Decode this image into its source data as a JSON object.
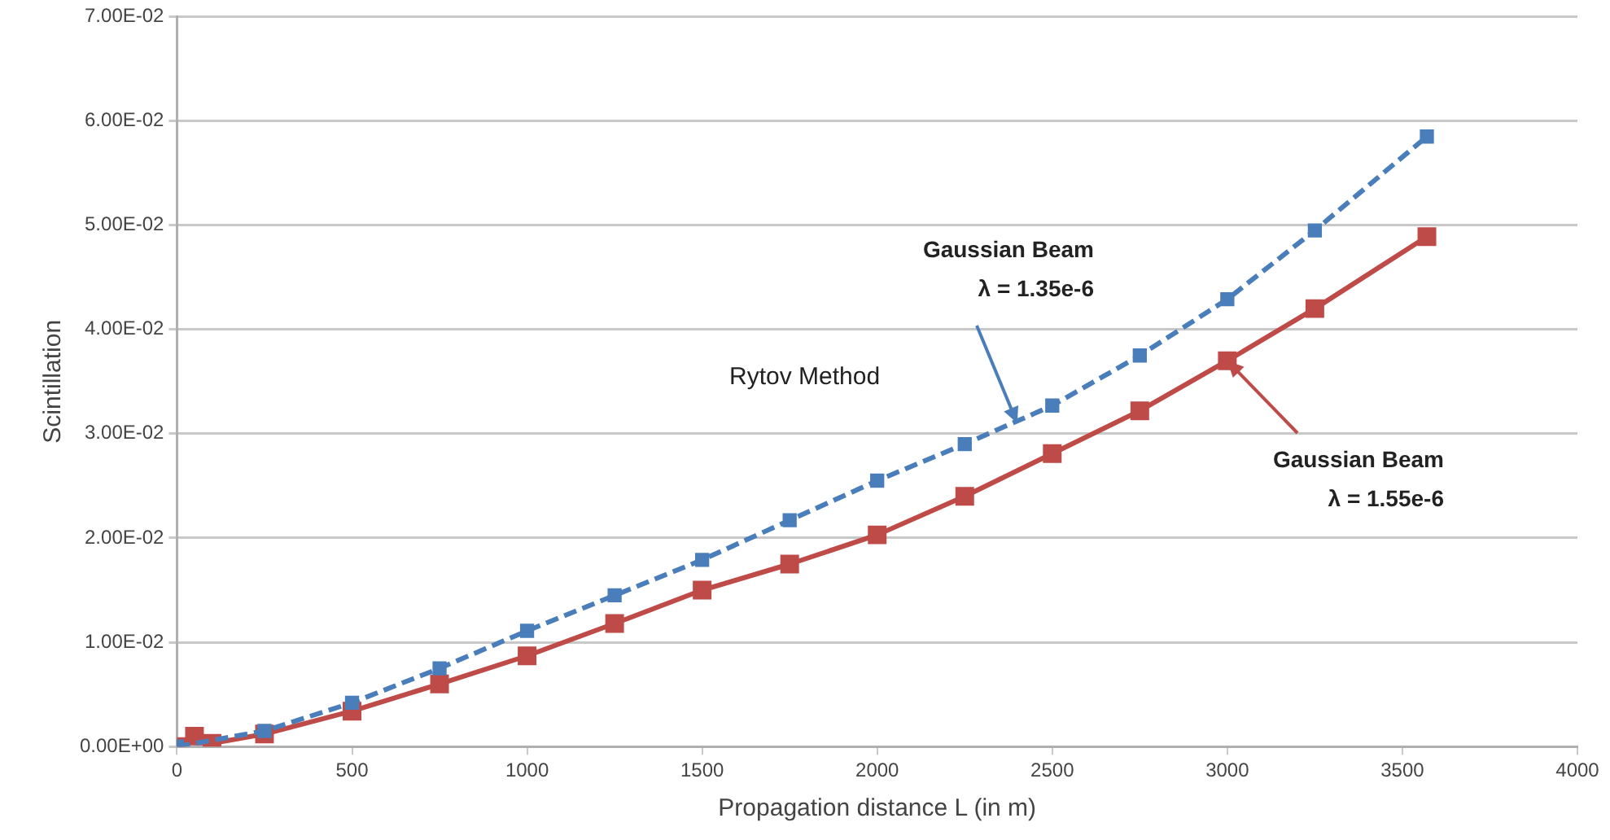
{
  "chart_data": {
    "type": "line",
    "xlabel": "Propagation distance L (in m)",
    "ylabel": "Scintillation",
    "xlim": [
      0,
      4000
    ],
    "xticks": [
      0,
      500,
      1000,
      1500,
      2000,
      2500,
      3000,
      3500,
      4000
    ],
    "ylim": [
      0,
      0.07
    ],
    "yticks": [
      {
        "value": 0,
        "label": "0.00E+00"
      },
      {
        "value": 0.01,
        "label": "1.00E-02"
      },
      {
        "value": 0.02,
        "label": "2.00E-02"
      },
      {
        "value": 0.03,
        "label": "3.00E-02"
      },
      {
        "value": 0.04,
        "label": "4.00E-02"
      },
      {
        "value": 0.05,
        "label": "5.00E-02"
      },
      {
        "value": 0.06,
        "label": "6.00E-02"
      },
      {
        "value": 0.07,
        "label": "7.00E-02"
      }
    ],
    "grid": "y",
    "legend": false,
    "marker": "square",
    "series": [
      {
        "color": "#4a7ebb",
        "line_style": "dashed",
        "x": [
          0,
          250,
          500,
          750,
          1000,
          1250,
          1500,
          1750,
          2000,
          2250,
          2500,
          2750,
          3000,
          3250,
          3570
        ],
        "values": [
          0,
          0.0015,
          0.0042,
          0.0075,
          0.0111,
          0.0145,
          0.0179,
          0.0217,
          0.0255,
          0.029,
          0.0327,
          0.0375,
          0.0429,
          0.0495,
          0.0585
        ]
      },
      {
        "color": "#be4b48",
        "line_style": "solid",
        "x": [
          0,
          50,
          100,
          250,
          500,
          750,
          1000,
          1250,
          1500,
          1750,
          2000,
          2250,
          2500,
          2750,
          3000,
          3250,
          3570
        ],
        "values": [
          0,
          0.001,
          0.0003,
          0.0012,
          0.0034,
          0.006,
          0.0087,
          0.0118,
          0.015,
          0.0175,
          0.0203,
          0.024,
          0.0281,
          0.0322,
          0.037,
          0.042,
          0.0489
        ]
      }
    ],
    "annotations": [
      {
        "text": "Gaussian Beam\nλ = 1.35e-6",
        "x": 2400,
        "y": 0.031
      },
      "Rytov Method",
      {
        "text": "Gaussian Beam\nλ = 1.55e-6",
        "x": 3000,
        "y": 0.037
      }
    ]
  }
}
